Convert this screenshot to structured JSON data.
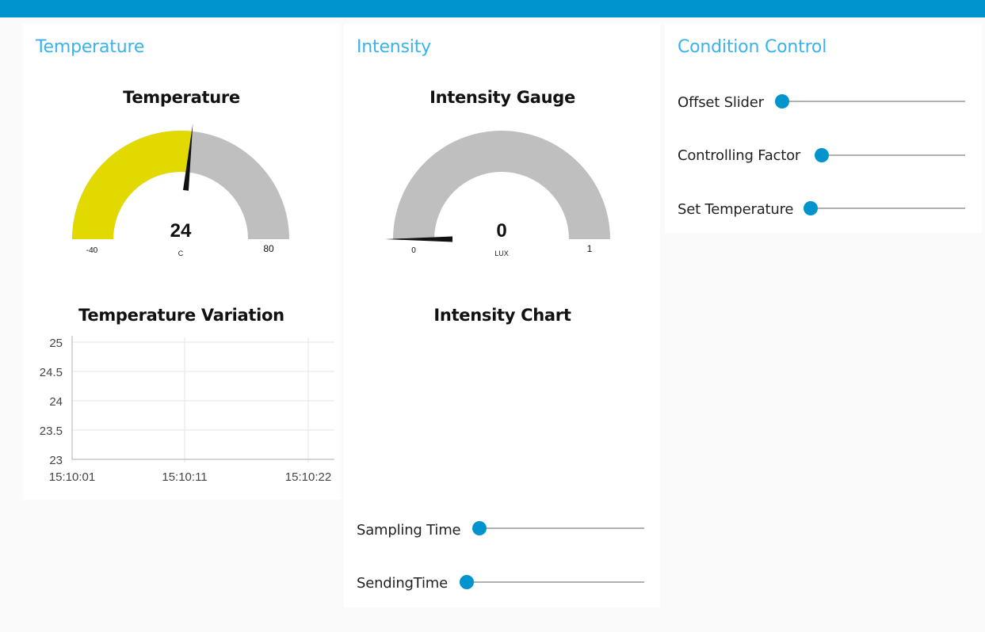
{
  "colors": {
    "header": "#0094ce",
    "group_title": "#3ab2ec",
    "gauge_fill": "#e2d900",
    "gauge_bg": "#bfbfbf",
    "slider_thumb": "#0094ce"
  },
  "groups": {
    "temperature": {
      "title": "Temperature",
      "gauge": {
        "title": "Temperature",
        "value": "24",
        "units": "C",
        "min": "-40",
        "max": "80"
      },
      "chart": {
        "title": "Temperature Variation"
      }
    },
    "intensity": {
      "title": "Intensity",
      "gauge": {
        "title": "Intensity Gauge",
        "value": "0",
        "units": "LUX",
        "min": "0",
        "max": "1"
      },
      "chart": {
        "title": "Intensity Chart"
      },
      "sliders": [
        {
          "label": "Sampling Time",
          "value": 0
        },
        {
          "label": "SendingTime",
          "value": 0
        }
      ]
    },
    "condition": {
      "title": "Condition Control",
      "sliders": [
        {
          "label": "Offset Slider",
          "value": 0
        },
        {
          "label": "Controlling Factor",
          "value": 0
        },
        {
          "label": "Set Temperature",
          "value": 0
        }
      ]
    }
  },
  "chart_data": {
    "type": "line",
    "title": "Temperature Variation",
    "xlabel": "",
    "ylabel": "",
    "x_ticks": [
      "15:10:01",
      "15:10:11",
      "15:10:22"
    ],
    "y_ticks": [
      "25",
      "24.5",
      "24",
      "23.5",
      "23"
    ],
    "ylim": [
      23,
      25
    ],
    "grid": true,
    "series": []
  }
}
